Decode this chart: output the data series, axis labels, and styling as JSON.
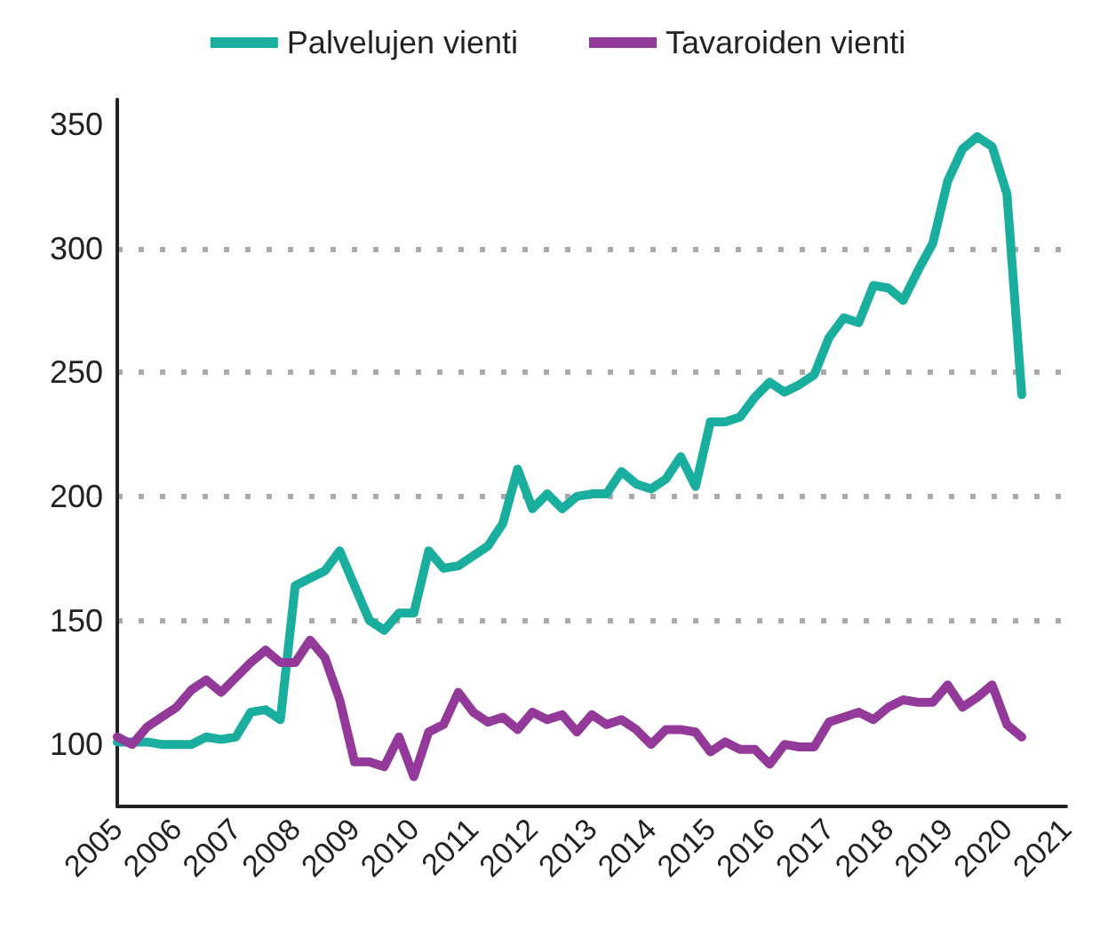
{
  "chart_data": {
    "type": "line",
    "x": [
      2005,
      2005.25,
      2005.5,
      2005.75,
      2006,
      2006.25,
      2006.5,
      2006.75,
      2007,
      2007.25,
      2007.5,
      2007.75,
      2008,
      2008.25,
      2008.5,
      2008.75,
      2009,
      2009.25,
      2009.5,
      2009.75,
      2010,
      2010.25,
      2010.5,
      2010.75,
      2011,
      2011.25,
      2011.5,
      2011.75,
      2012,
      2012.25,
      2012.5,
      2012.75,
      2013,
      2013.25,
      2013.5,
      2013.75,
      2014,
      2014.25,
      2014.5,
      2014.75,
      2015,
      2015.25,
      2015.5,
      2015.75,
      2016,
      2016.25,
      2016.5,
      2016.75,
      2017,
      2017.25,
      2017.5,
      2017.75,
      2018,
      2018.25,
      2018.5,
      2018.75,
      2019,
      2019.25,
      2019.5,
      2019.75,
      2020,
      2020.25
    ],
    "series": [
      {
        "name": "Palvelujen vienti",
        "color": "#1aae9f",
        "values": [
          101,
          101,
          101,
          100,
          100,
          100,
          103,
          102,
          103,
          113,
          114,
          110,
          164,
          167,
          170,
          178,
          164,
          150,
          146,
          153,
          153,
          178,
          171,
          172,
          176,
          180,
          189,
          211,
          195,
          201,
          195,
          200,
          201,
          201,
          210,
          205,
          203,
          207,
          216,
          204,
          230,
          230,
          232,
          240,
          246,
          242,
          245,
          249,
          264,
          272,
          270,
          285,
          284,
          279,
          291,
          302,
          327,
          340,
          345,
          341,
          322,
          241
        ]
      },
      {
        "name": "Tavaroiden vienti",
        "color": "#93399a",
        "values": [
          103,
          100,
          107,
          111,
          115,
          122,
          126,
          121,
          127,
          133,
          138,
          133,
          133,
          142,
          135,
          118,
          93,
          93,
          91,
          103,
          87,
          105,
          108,
          121,
          113,
          109,
          111,
          106,
          113,
          110,
          112,
          105,
          112,
          108,
          110,
          106,
          100,
          106,
          106,
          105,
          97,
          101,
          98,
          98,
          92,
          100,
          99,
          99,
          109,
          111,
          113,
          110,
          115,
          118,
          117,
          117,
          124,
          115,
          119,
          124,
          108,
          103
        ]
      }
    ],
    "xlim": [
      2005,
      2021
    ],
    "xticks": [
      2005,
      2006,
      2007,
      2008,
      2009,
      2010,
      2011,
      2012,
      2013,
      2014,
      2015,
      2016,
      2017,
      2018,
      2019,
      2020,
      2021
    ],
    "ylim": [
      75,
      360
    ],
    "yticks": [
      100,
      150,
      200,
      250,
      300,
      350
    ],
    "grid": "y",
    "legend": "top",
    "marker": "none",
    "line_style": "solid"
  }
}
